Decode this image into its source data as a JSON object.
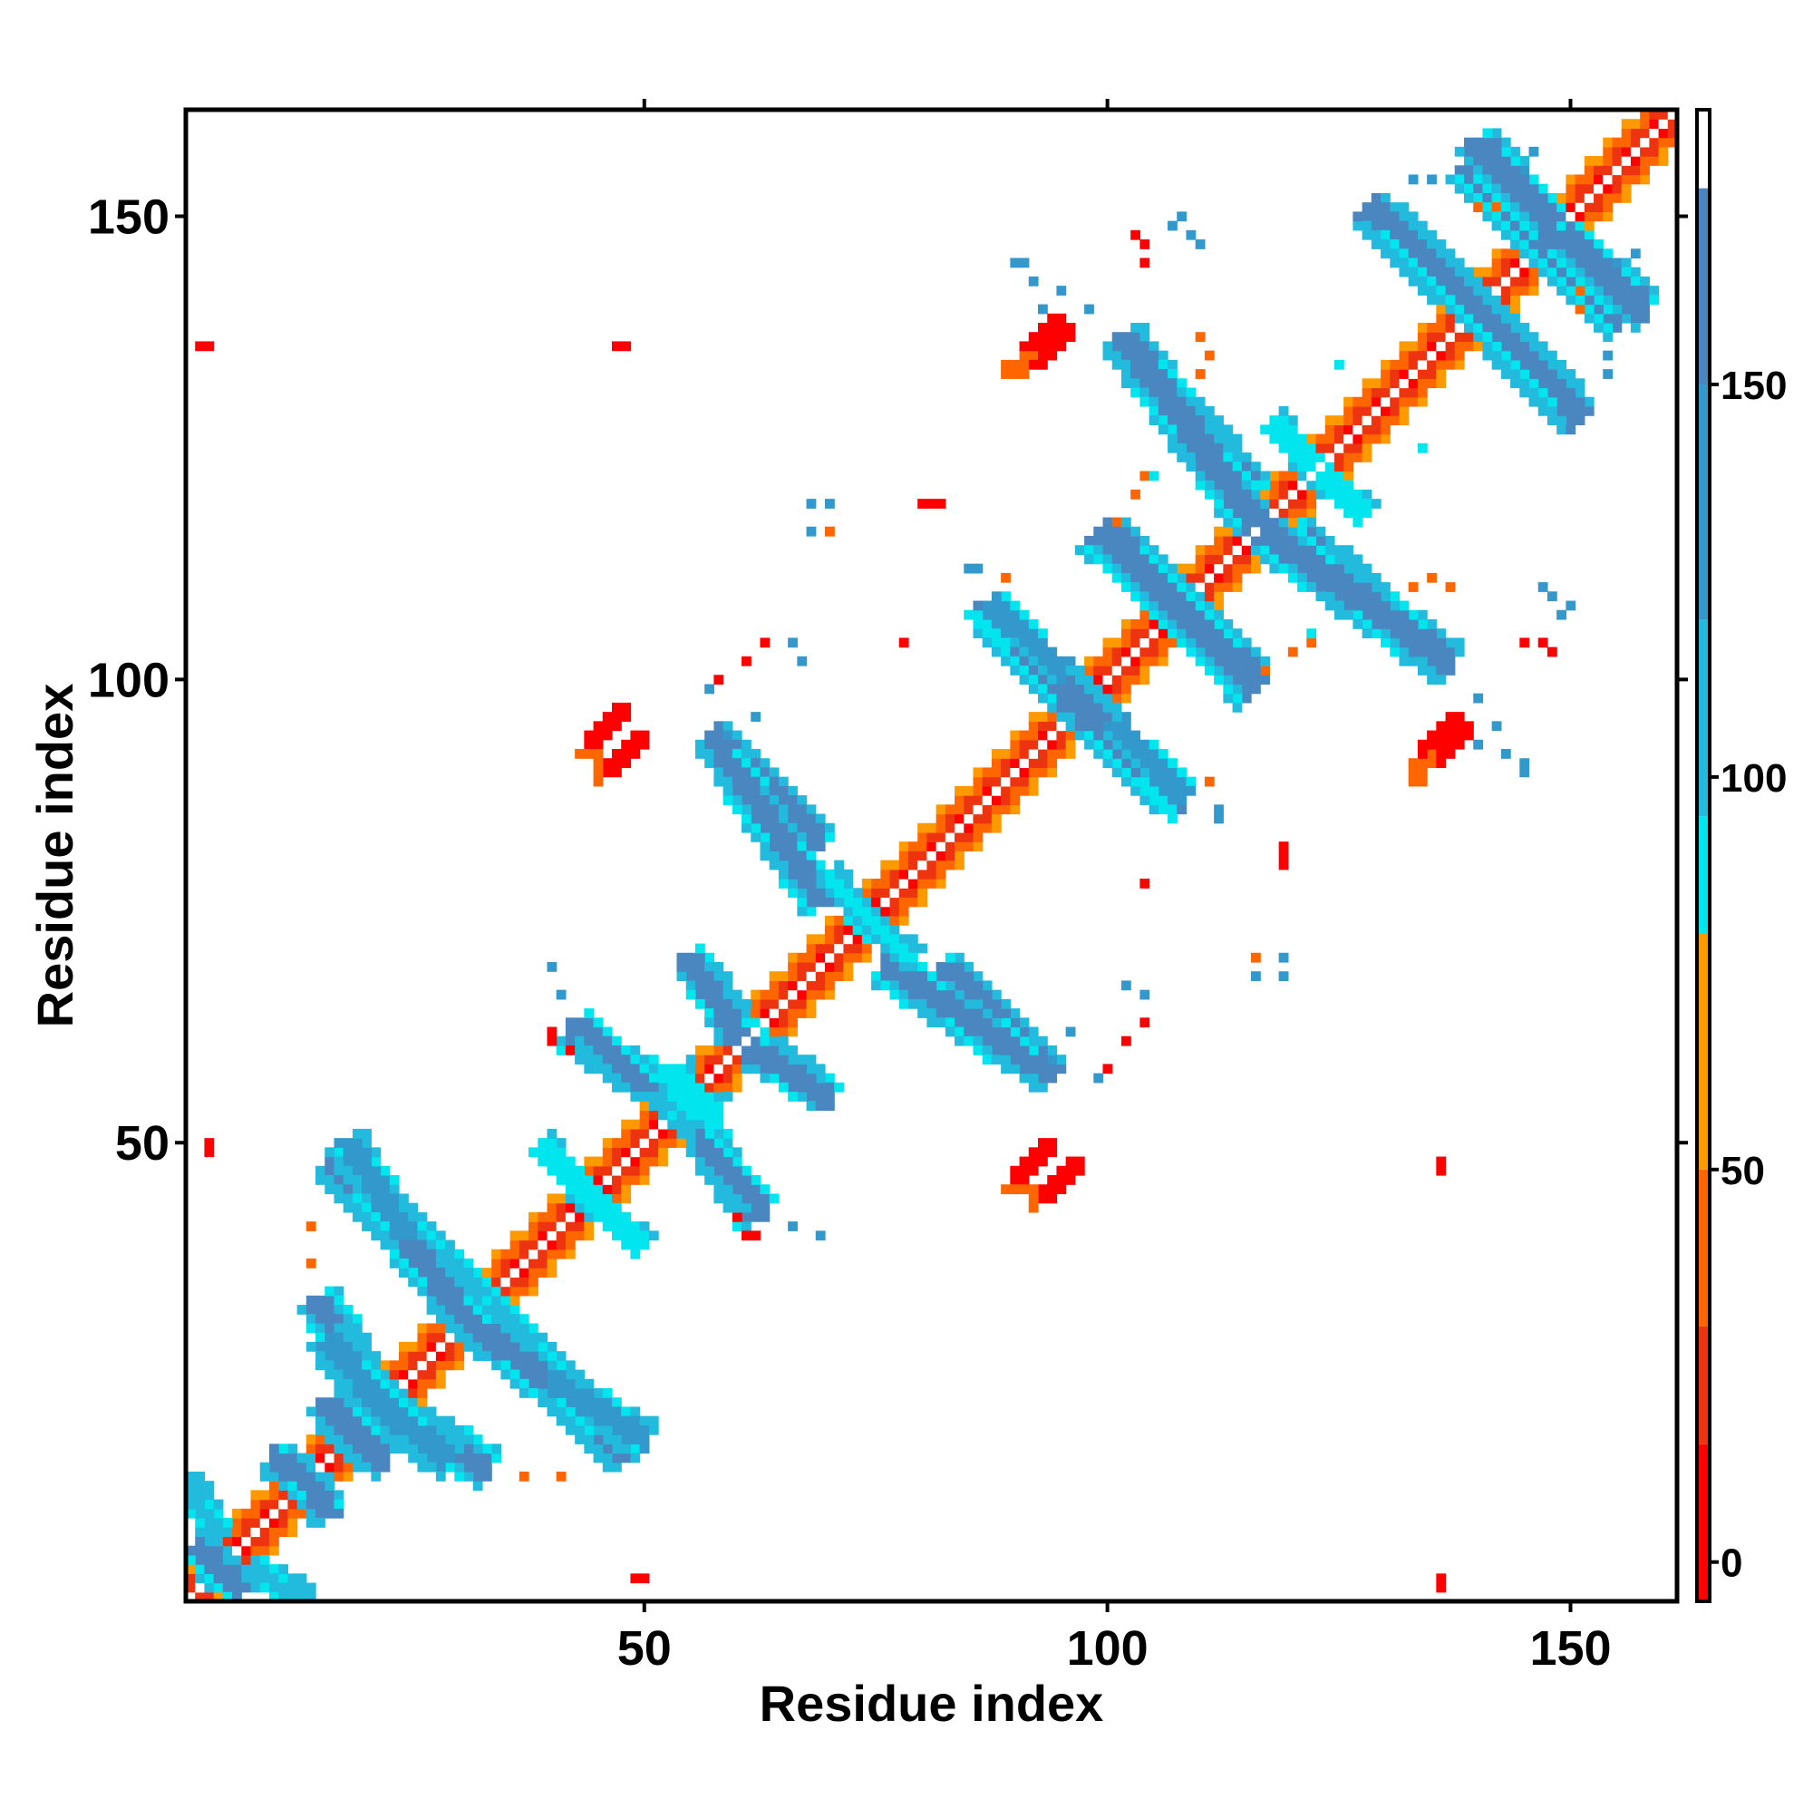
{
  "chart_data": {
    "type": "heatmap",
    "title": "",
    "xlabel": "Residue index",
    "ylabel": "Residue index",
    "xlim": [
      1,
      161
    ],
    "ylim": [
      1,
      161
    ],
    "x_ticks": [
      50,
      100,
      150
    ],
    "y_ticks": [
      50,
      100,
      150
    ],
    "x_tick_labels": [
      "50",
      "100",
      "150"
    ],
    "y_tick_labels": [
      "50",
      "100",
      "150"
    ],
    "colorbar": {
      "range": [
        -5,
        185
      ],
      "ticks": [
        0,
        50,
        100,
        150
      ],
      "tick_labels": [
        "0",
        "50",
        "100",
        "150"
      ],
      "bands": [
        {
          "from": -5,
          "to": 15,
          "color": "#ff0000"
        },
        {
          "from": 15,
          "to": 30,
          "color": "#ee3311"
        },
        {
          "from": 30,
          "to": 50,
          "color": "#ff6600"
        },
        {
          "from": 50,
          "to": 80,
          "color": "#ff9900"
        },
        {
          "from": 80,
          "to": 95,
          "color": "#00e5ee"
        },
        {
          "from": 95,
          "to": 120,
          "color": "#22bbdd"
        },
        {
          "from": 120,
          "to": 150,
          "color": "#3399cc"
        },
        {
          "from": 150,
          "to": 175,
          "color": "#4a86c0"
        },
        {
          "from": 175,
          "to": 185,
          "color": "#ffffff"
        }
      ]
    },
    "colors": {
      "red": "#ff0000",
      "red_orange": "#ee3311",
      "orange": "#ff6600",
      "amber": "#ff9900",
      "cyan": "#00e5ee",
      "sky": "#22bbdd",
      "steel": "#3399cc",
      "slate": "#4a86c0"
    },
    "diagonal": {
      "from": 1,
      "to": 161,
      "near": "#ee3311",
      "mid": "#ff6600",
      "far": "#ff9900",
      "center": "#ffffff"
    },
    "segments": [
      {
        "from": [
          3,
          5
        ],
        "to": [
          7,
          2
        ],
        "color": "slate",
        "width": 1.6
      },
      {
        "from": [
          8,
          4
        ],
        "to": [
          14,
          1
        ],
        "color": "sky",
        "width": 1.4
      },
      {
        "from": [
          12,
          15
        ],
        "to": [
          16,
          10
        ],
        "color": "slate",
        "width": 1.8
      },
      {
        "from": [
          17,
          20
        ],
        "to": [
          22,
          16
        ],
        "color": "slate",
        "width": 2.2
      },
      {
        "from": [
          15,
          33
        ],
        "to": [
          20,
          24
        ],
        "color": "slate",
        "width": 2.0
      },
      {
        "from": [
          20,
          23
        ],
        "to": [
          29,
          16
        ],
        "color": "steel",
        "width": 2.0
      },
      {
        "from": [
          16,
          48
        ],
        "to": [
          28,
          37
        ],
        "color": "slate",
        "width": 2.0
      },
      {
        "from": [
          28,
          37
        ],
        "to": [
          33,
          32
        ],
        "color": "cyan",
        "width": 2.0
      },
      {
        "from": [
          31,
          31
        ],
        "to": [
          40,
          24
        ],
        "color": "slate",
        "width": 2.0
      },
      {
        "from": [
          40,
          24
        ],
        "to": [
          50,
          18
        ],
        "color": "steel",
        "width": 1.8
      },
      {
        "from": [
          42,
          62
        ],
        "to": [
          53,
          55
        ],
        "color": "slate",
        "width": 1.8
      },
      {
        "from": [
          53,
          55
        ],
        "to": [
          58,
          53
        ],
        "color": "cyan",
        "width": 1.8
      },
      {
        "from": [
          56,
          50
        ],
        "to": [
          63,
          43
        ],
        "color": "slate",
        "width": 1.6
      },
      {
        "from": [
          56,
          69
        ],
        "to": [
          61,
          62
        ],
        "color": "slate",
        "width": 1.6
      },
      {
        "from": [
          62,
          60
        ],
        "to": [
          70,
          55
        ],
        "color": "slate",
        "width": 1.6
      },
      {
        "from": [
          57,
          94
        ],
        "to": [
          69,
          82
        ],
        "color": "slate",
        "width": 1.8
      },
      {
        "from": [
          76,
          69
        ],
        "to": [
          91,
          59
        ],
        "color": "slate",
        "width": 1.8
      },
      {
        "from": [
          87,
          107
        ],
        "to": [
          100,
          95
        ],
        "color": "slate",
        "width": 2.2
      },
      {
        "from": [
          98,
          96
        ],
        "to": [
          108,
          87
        ],
        "color": "slate",
        "width": 2.2
      },
      {
        "from": [
          99,
          116
        ],
        "to": [
          116,
          100
        ],
        "color": "slate",
        "width": 2.2
      },
      {
        "from": [
          102,
          136
        ],
        "to": [
          116,
          120
        ],
        "color": "slate",
        "width": 2.2
      },
      {
        "from": [
          117,
          116
        ],
        "to": [
          137,
          102
        ],
        "color": "slate",
        "width": 2.2
      },
      {
        "from": [
          128,
          151
        ],
        "to": [
          140,
          140
        ],
        "color": "slate",
        "width": 2.2
      },
      {
        "from": [
          139,
          156
        ],
        "to": [
          149,
          146
        ],
        "color": "slate",
        "width": 2.2
      },
      {
        "from": [
          149,
          148
        ],
        "to": [
          158,
          140
        ],
        "color": "slate",
        "width": 2.2
      },
      {
        "from": [
          140,
          140
        ],
        "to": [
          150,
          130
        ],
        "color": "slate",
        "width": 2.0
      },
      {
        "from": [
          101,
          95
        ],
        "to": [
          108,
          87
        ],
        "color": "steel",
        "width": 1.2
      },
      {
        "from": [
          44,
          44
        ],
        "to": [
          50,
          39
        ],
        "color": "cyan",
        "width": 1.0
      },
      {
        "from": [
          73,
          75
        ],
        "to": [
          79,
          70
        ],
        "color": "cyan",
        "width": 1.0
      },
      {
        "from": [
          123,
          122
        ],
        "to": [
          128,
          118
        ],
        "color": "cyan",
        "width": 1.0
      }
    ],
    "blobs": [
      {
        "x": 46,
        "y": 95,
        "rx": 3.0,
        "ry": 1.4,
        "angle": 40,
        "color": "red"
      },
      {
        "x": 44,
        "y": 92,
        "rx": 1.4,
        "ry": 0.8,
        "angle": 40,
        "color": "orange"
      },
      {
        "x": 92,
        "y": 48,
        "rx": 3.0,
        "ry": 1.4,
        "angle": 40,
        "color": "red"
      },
      {
        "x": 90,
        "y": 45,
        "rx": 1.4,
        "ry": 0.8,
        "angle": 40,
        "color": "orange"
      },
      {
        "x": 93,
        "y": 137,
        "rx": 3.0,
        "ry": 1.3,
        "angle": 40,
        "color": "red"
      },
      {
        "x": 90,
        "y": 134,
        "rx": 1.5,
        "ry": 0.8,
        "angle": 40,
        "color": "orange"
      },
      {
        "x": 136,
        "y": 94,
        "rx": 3.0,
        "ry": 1.4,
        "angle": 40,
        "color": "red"
      },
      {
        "x": 134,
        "y": 91,
        "rx": 1.5,
        "ry": 0.8,
        "angle": 40,
        "color": "orange"
      },
      {
        "x": 81,
        "y": 119,
        "rx": 1.6,
        "ry": 0.7,
        "angle": 0,
        "color": "red"
      },
      {
        "x": 119,
        "y": 81,
        "rx": 0.7,
        "ry": 1.6,
        "angle": 0,
        "color": "red"
      },
      {
        "x": 104,
        "y": 147,
        "rx": 1.2,
        "ry": 0.6,
        "angle": 45,
        "color": "red"
      },
      {
        "x": 147,
        "y": 104,
        "rx": 1.2,
        "ry": 0.6,
        "angle": 45,
        "color": "red"
      },
      {
        "x": 145,
        "y": 104,
        "rx": 1.2,
        "ry": 0.6,
        "angle": 45,
        "color": "red"
      },
      {
        "x": 151,
        "y": 142,
        "rx": 1.2,
        "ry": 0.6,
        "angle": 45,
        "color": "orange"
      },
      {
        "x": 140,
        "y": 151,
        "rx": 1.2,
        "ry": 0.6,
        "angle": 45,
        "color": "orange"
      },
      {
        "x": 37,
        "y": 14,
        "rx": 1.2,
        "ry": 0.6,
        "angle": 45,
        "color": "orange"
      },
      {
        "x": 14,
        "y": 37,
        "rx": 1.2,
        "ry": 0.6,
        "angle": 45,
        "color": "orange"
      },
      {
        "x": 89,
        "y": 111,
        "rx": 1.2,
        "ry": 0.6,
        "angle": 45,
        "color": "orange"
      },
      {
        "x": 111,
        "y": 89,
        "rx": 1.2,
        "ry": 0.6,
        "angle": 45,
        "color": "orange"
      },
      {
        "x": 122,
        "y": 104,
        "rx": 1.2,
        "ry": 0.6,
        "angle": 45,
        "color": "orange"
      },
      {
        "x": 104,
        "y": 122,
        "rx": 1.2,
        "ry": 0.6,
        "angle": 45,
        "color": "orange"
      },
      {
        "x": 3,
        "y": 50,
        "rx": 0.7,
        "ry": 0.5,
        "angle": 0,
        "color": "red"
      },
      {
        "x": 49,
        "y": 3,
        "rx": 0.7,
        "ry": 0.5,
        "angle": 0,
        "color": "red"
      },
      {
        "x": 111,
        "y": 135,
        "rx": 0.8,
        "ry": 0.5,
        "angle": 0,
        "color": "orange"
      },
      {
        "x": 135,
        "y": 111,
        "rx": 0.5,
        "ry": 0.8,
        "angle": 0,
        "color": "orange"
      }
    ],
    "points": [
      [
        2,
        136,
        "red"
      ],
      [
        47,
        136,
        "red"
      ],
      [
        61,
        102,
        "red"
      ],
      [
        58,
        100,
        "red"
      ],
      [
        67,
        102,
        "steel"
      ],
      [
        62,
        96,
        "steel"
      ],
      [
        103,
        148,
        "red"
      ],
      [
        107,
        149,
        "steel"
      ],
      [
        110,
        147,
        "steel"
      ],
      [
        91,
        145,
        "steel"
      ],
      [
        95,
        142,
        "steel"
      ],
      [
        98,
        140,
        "steel"
      ],
      [
        68,
        119,
        "steel"
      ],
      [
        68,
        116,
        "steel"
      ],
      [
        85,
        112,
        "steel"
      ],
      [
        101,
        117,
        "orange"
      ],
      [
        133,
        110,
        "orange"
      ],
      [
        137,
        110,
        "orange"
      ],
      [
        148,
        109,
        "steel"
      ],
      [
        150,
        108,
        "steel"
      ],
      [
        140,
        93,
        "steel"
      ],
      [
        143,
        92,
        "steel"
      ],
      [
        145,
        90,
        "steel"
      ],
      [
        112,
        86,
        "steel"
      ],
      [
        104,
        78,
        "red"
      ],
      [
        116,
        70,
        "orange"
      ],
      [
        119,
        70,
        "steel"
      ],
      [
        104,
        66,
        "steel"
      ],
      [
        102,
        61,
        "red"
      ],
      [
        104,
        63,
        "red"
      ],
      [
        40,
        61,
        "red"
      ],
      [
        40,
        69,
        "steel"
      ],
      [
        94,
        59,
        "steel"
      ],
      [
        60,
        42,
        "red"
      ],
      [
        66,
        41,
        "steel"
      ],
      [
        136,
        48,
        "red"
      ],
      [
        136,
        3,
        "red"
      ],
      [
        40,
        62,
        "red"
      ],
      [
        157,
        146,
        "steel"
      ],
      [
        155,
        145,
        "steel"
      ],
      [
        135,
        154,
        "steel"
      ],
      [
        133,
        154,
        "steel"
      ],
      [
        125,
        134,
        "cyan"
      ],
      [
        122,
        105,
        "cyan"
      ],
      [
        120,
        103,
        "orange"
      ],
      [
        14,
        41,
        "orange"
      ],
      [
        57,
        99,
        "steel"
      ]
    ]
  }
}
